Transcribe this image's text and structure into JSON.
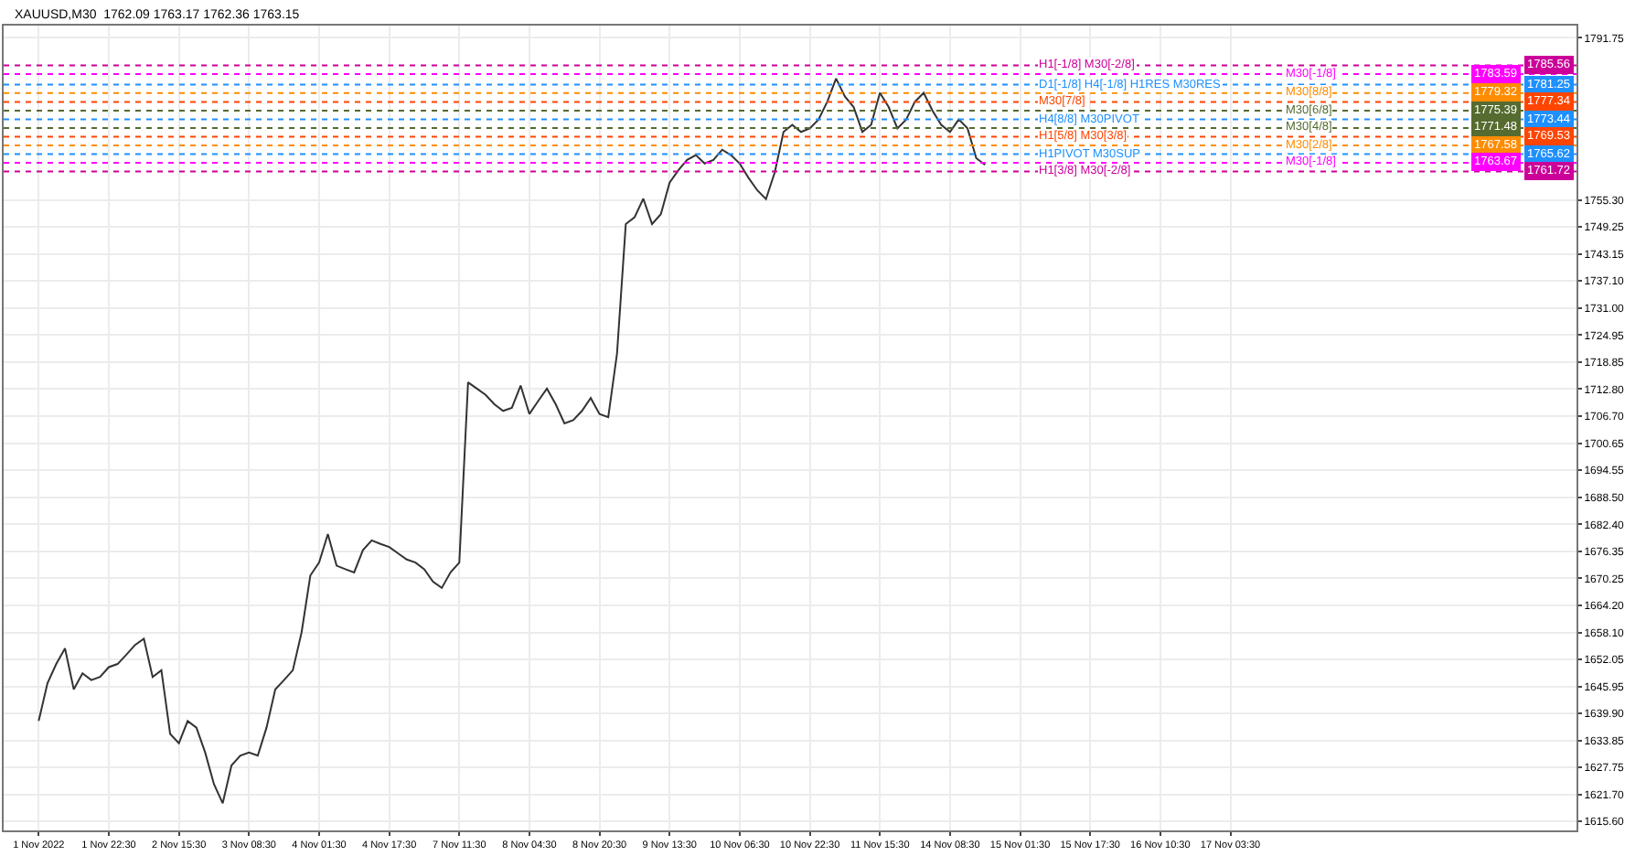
{
  "chart_data": {
    "type": "line",
    "title": "XAUUSD,M30  1762.09 1763.17 1762.36 1763.15",
    "categories": [
      "1 Nov 2022",
      null,
      null,
      null,
      null,
      null,
      null,
      null,
      "1 Nov 22:30",
      null,
      null,
      null,
      null,
      null,
      null,
      null,
      "2 Nov 15:30",
      null,
      null,
      null,
      null,
      null,
      null,
      null,
      "3 Nov 08:30",
      null,
      null,
      null,
      null,
      null,
      null,
      null,
      "4 Nov 01:30",
      null,
      null,
      null,
      null,
      null,
      null,
      null,
      "4 Nov 17:30",
      null,
      null,
      null,
      null,
      null,
      null,
      null,
      "7 Nov 11:30",
      null,
      null,
      null,
      null,
      null,
      null,
      null,
      "8 Nov 04:30",
      null,
      null,
      null,
      null,
      null,
      null,
      null,
      "8 Nov 20:30",
      null,
      null,
      null,
      null,
      null,
      null,
      null,
      "9 Nov 13:30",
      null,
      null,
      null,
      null,
      null,
      null,
      null,
      "10 Nov 06:30",
      null,
      null,
      null,
      null,
      null,
      null,
      null,
      "10 Nov 22:30",
      null,
      null,
      null,
      null,
      null,
      null,
      null,
      "11 Nov 15:30",
      null,
      null,
      null,
      null,
      null,
      null,
      null,
      "14 Nov 08:30",
      null,
      null,
      null,
      null,
      null,
      null,
      null,
      "15 Nov 01:30",
      null,
      null,
      null,
      null,
      null,
      null,
      null,
      "15 Nov 17:30",
      null,
      null,
      null,
      null,
      null,
      null,
      null,
      "16 Nov 10:30",
      null,
      null,
      null,
      null,
      null,
      null,
      null,
      "17 Nov 03:30",
      null,
      null,
      null,
      null,
      null,
      null,
      null,
      null,
      null,
      null,
      null,
      null,
      null,
      null,
      null,
      null,
      null,
      null,
      null,
      null,
      null,
      null,
      null,
      null,
      null,
      null,
      null,
      null,
      null,
      null,
      null,
      null,
      null,
      null,
      null,
      null,
      null,
      null,
      null
    ],
    "series": [
      {
        "color": "#333333",
        "values": [
          1638.2,
          1646.7,
          1651.0,
          1654.5,
          1645.3,
          1648.9,
          1647.4,
          1648.1,
          1650.3,
          1651.0,
          1653.1,
          1655.3,
          1656.7,
          1648.1,
          1649.6,
          1635.3,
          1633.2,
          1638.2,
          1636.7,
          1631.1,
          1624.0,
          1619.7,
          1628.2,
          1630.4,
          1631.1,
          1630.4,
          1636.7,
          1645.3,
          1647.4,
          1649.6,
          1658.1,
          1670.9,
          1673.8,
          1680.2,
          1673.1,
          1672.3,
          1671.6,
          1676.6,
          1678.8,
          1678.0,
          1677.3,
          1675.9,
          1674.5,
          1673.8,
          1672.3,
          1669.5,
          1668.1,
          1671.6,
          1673.8,
          1714.3,
          1712.9,
          1711.5,
          1709.4,
          1707.9,
          1708.6,
          1713.6,
          1707.2,
          1710.1,
          1712.9,
          1709.4,
          1705.1,
          1705.8,
          1707.9,
          1710.8,
          1707.2,
          1706.5,
          1720.8,
          1749.9,
          1751.4,
          1755.6,
          1749.9,
          1752.1,
          1759.2,
          1762.0,
          1764.3,
          1765.4,
          1763.5,
          1764.3,
          1766.6,
          1765.4,
          1763.5,
          1760.3,
          1757.5,
          1755.5,
          1761.5,
          1770.6,
          1772.2,
          1770.6,
          1771.4,
          1773.4,
          1777.4,
          1782.6,
          1778.6,
          1776.2,
          1770.6,
          1772.2,
          1779.4,
          1776.2,
          1771.4,
          1773.4,
          1777.4,
          1779.4,
          1775.4,
          1772.2,
          1770.6,
          1773.4,
          1771.4,
          1764.7,
          1763.2,
          null,
          null,
          null,
          null,
          null,
          null,
          null,
          null,
          null,
          null,
          null,
          null,
          null,
          null,
          null,
          null,
          null,
          null,
          null,
          null,
          null,
          null,
          null,
          null,
          null,
          null,
          null,
          null,
          null,
          null,
          null,
          null,
          null,
          null,
          null,
          null,
          null,
          null,
          null,
          null,
          null,
          null,
          null,
          null,
          null,
          null,
          null,
          null,
          null,
          null,
          null,
          null,
          null,
          null,
          null,
          null,
          null,
          null,
          null,
          null,
          null,
          null,
          null,
          null,
          null,
          null,
          null
        ]
      }
    ],
    "ylim": [
      1613.6,
      1794.5
    ],
    "yticks": [
      {
        "value": 1615.6,
        "label": "1615.60"
      },
      {
        "value": 1621.7,
        "label": "1621.70"
      },
      1627.75,
      1633.85,
      {
        "value": 1639.9,
        "label": "1639.90"
      },
      1645.95,
      1652.05,
      {
        "value": 1658.1,
        "label": "1658.10"
      },
      {
        "value": 1664.2,
        "label": "1664.20"
      },
      1670.25,
      1676.35,
      {
        "value": 1682.4,
        "label": "1682.40"
      },
      {
        "value": 1688.5,
        "label": "1688.50"
      },
      1694.55,
      1700.65,
      {
        "value": 1706.7,
        "label": "1706.70"
      },
      {
        "value": 1712.8,
        "label": "1712.80"
      },
      1718.85,
      1724.95,
      {
        "value": 1731,
        "label": "1731.00"
      },
      {
        "value": 1737.1,
        "label": "1737.10"
      },
      1743.15,
      1749.25,
      {
        "value": 1755.3,
        "label": "1755.30"
      },
      1791.75
    ],
    "annotations": [
      {
        "text": "1785.56",
        "y": 1785.56
      },
      {
        "text": "1783.59",
        "y": 1783.59
      },
      {
        "text": "1781.25",
        "y": 1781.25
      },
      {
        "text": "1779.32",
        "y": 1779.32
      },
      {
        "text": "1777.34",
        "y": 1777.34
      },
      {
        "text": "1775.39",
        "y": 1775.39
      },
      {
        "text": "1773.44",
        "y": 1773.44
      },
      {
        "text": "1771.48",
        "y": 1771.48
      },
      {
        "text": "1769.53",
        "y": 1769.53
      },
      {
        "text": "1767.58",
        "y": 1767.58
      },
      {
        "text": "1765.62",
        "y": 1765.62
      },
      {
        "text": "1763.67",
        "y": 1763.67
      },
      {
        "text": "1761.72",
        "y": 1761.72
      }
    ],
    "grid": true,
    "marker": "none",
    "line_style": "solid",
    "ref_lines": [
      {
        "axis": "y",
        "value": 1785.56,
        "label": "H1[-1/8] M30[-2/8]",
        "color": "#cc0099",
        "line_style": "dotted"
      },
      {
        "axis": "y",
        "value": 1783.59,
        "label": "M30[-1/8]",
        "color": "#ff00ff",
        "line_style": "dotted"
      },
      {
        "axis": "y",
        "value": 1781.25,
        "label": "D1[-1/8] H4[-1/8] H1RES M30RES",
        "color": "#1e90ff",
        "line_style": "dotted"
      },
      {
        "axis": "y",
        "value": 1779.32,
        "label": "M30[8/8]",
        "color": "#ff8c00",
        "line_style": "dotted"
      },
      {
        "axis": "y",
        "value": 1777.34,
        "label": "M30[7/8]",
        "color": "#ff4500",
        "line_style": "dotted"
      },
      {
        "axis": "y",
        "value": 1775.39,
        "label": "M30[6/8]",
        "color": "#556b2f",
        "line_style": "dotted"
      },
      {
        "axis": "y",
        "value": 1773.44,
        "label": "H4[8/8] M30PIVOT",
        "color": "#1e90ff",
        "line_style": "dotted"
      },
      {
        "axis": "y",
        "value": 1771.48,
        "label": "M30[4/8]",
        "color": "#556b2f",
        "line_style": "dotted"
      },
      {
        "axis": "y",
        "value": 1769.53,
        "label": "H1[5/8] M30[3/8]",
        "color": "#ff4500",
        "line_style": "dotted"
      },
      {
        "axis": "y",
        "value": 1767.58,
        "label": "M30[2/8]",
        "color": "#ff8c00",
        "line_style": "dotted"
      },
      {
        "axis": "y",
        "value": 1765.62,
        "label": "H1PIVOT M30SUP",
        "color": "#1e90ff",
        "line_style": "dotted"
      },
      {
        "axis": "y",
        "value": 1763.67,
        "label": "M30[-1/8]",
        "color": "#ff00ff",
        "line_style": "dotted"
      },
      {
        "axis": "y",
        "value": 1761.72,
        "label": "H1[3/8] M30[-2/8]",
        "color": "#cc0099",
        "line_style": "dotted"
      }
    ]
  }
}
